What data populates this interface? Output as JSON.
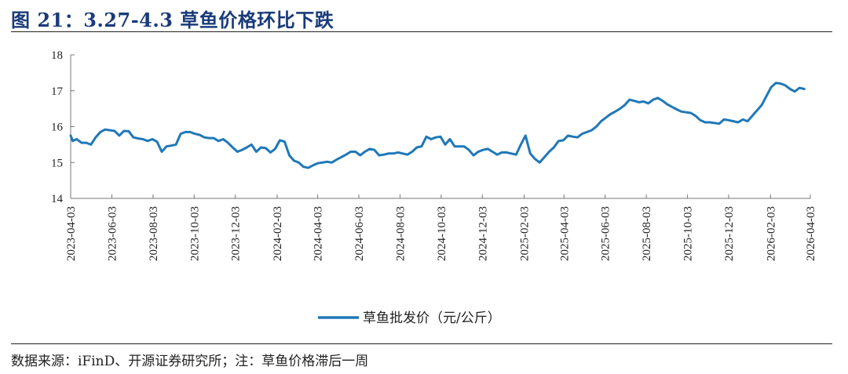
{
  "header": {
    "title": "图 21：3.27-4.3 草鱼价格环比下跌"
  },
  "footer": {
    "source": "数据来源：iFinD、开源证券研究所；注：草鱼价格滞后一周"
  },
  "colors": {
    "line": "#1f78b8",
    "title": "#1a3b7a"
  },
  "chart_data": {
    "type": "line",
    "title": "",
    "xlabel": "",
    "ylabel": "",
    "ylim": [
      14,
      18
    ],
    "yticks": [
      14,
      15,
      16,
      17,
      18
    ],
    "xlim": [
      "2023-04-03",
      "2026-04-03"
    ],
    "xticks": [
      "2023-04-03",
      "2023-06-03",
      "2023-08-03",
      "2023-10-03",
      "2023-12-03",
      "2024-02-03",
      "2024-04-03",
      "2024-06-03",
      "2024-08-03",
      "2024-10-03",
      "2024-12-03",
      "2025-02-03",
      "2025-04-03",
      "2025-06-03",
      "2025-08-03",
      "2025-10-03",
      "2025-12-03",
      "2026-02-03",
      "2026-04-03"
    ],
    "grid": false,
    "legend": "bottom-center",
    "series": [
      {
        "name": "草鱼批发价（元/公斤）",
        "points": [
          [
            "2023-04-03",
            15.75
          ],
          [
            "2023-04-06",
            15.6
          ],
          [
            "2023-04-12",
            15.65
          ],
          [
            "2023-04-19",
            15.55
          ],
          [
            "2023-04-26",
            15.55
          ],
          [
            "2023-05-03",
            15.5
          ],
          [
            "2023-05-10",
            15.7
          ],
          [
            "2023-05-17",
            15.85
          ],
          [
            "2023-05-24",
            15.92
          ],
          [
            "2023-05-31",
            15.9
          ],
          [
            "2023-06-07",
            15.88
          ],
          [
            "2023-06-14",
            15.75
          ],
          [
            "2023-06-21",
            15.88
          ],
          [
            "2023-06-28",
            15.87
          ],
          [
            "2023-07-05",
            15.7
          ],
          [
            "2023-07-12",
            15.67
          ],
          [
            "2023-07-19",
            15.65
          ],
          [
            "2023-07-26",
            15.6
          ],
          [
            "2023-08-02",
            15.65
          ],
          [
            "2023-08-09",
            15.58
          ],
          [
            "2023-08-16",
            15.3
          ],
          [
            "2023-08-23",
            15.45
          ],
          [
            "2023-08-30",
            15.47
          ],
          [
            "2023-09-06",
            15.5
          ],
          [
            "2023-09-13",
            15.8
          ],
          [
            "2023-09-20",
            15.85
          ],
          [
            "2023-09-27",
            15.85
          ],
          [
            "2023-10-04",
            15.8
          ],
          [
            "2023-10-11",
            15.77
          ],
          [
            "2023-10-18",
            15.7
          ],
          [
            "2023-10-25",
            15.68
          ],
          [
            "2023-11-01",
            15.68
          ],
          [
            "2023-11-08",
            15.6
          ],
          [
            "2023-11-15",
            15.65
          ],
          [
            "2023-11-22",
            15.55
          ],
          [
            "2023-11-29",
            15.42
          ],
          [
            "2023-12-06",
            15.3
          ],
          [
            "2023-12-13",
            15.35
          ],
          [
            "2023-12-20",
            15.42
          ],
          [
            "2023-12-27",
            15.5
          ],
          [
            "2024-01-03",
            15.3
          ],
          [
            "2024-01-10",
            15.42
          ],
          [
            "2024-01-17",
            15.4
          ],
          [
            "2024-01-24",
            15.28
          ],
          [
            "2024-01-31",
            15.38
          ],
          [
            "2024-02-07",
            15.62
          ],
          [
            "2024-02-14",
            15.58
          ],
          [
            "2024-02-21",
            15.2
          ],
          [
            "2024-02-28",
            15.05
          ],
          [
            "2024-03-06",
            15.0
          ],
          [
            "2024-03-13",
            14.88
          ],
          [
            "2024-03-20",
            14.85
          ],
          [
            "2024-03-27",
            14.92
          ],
          [
            "2024-04-03",
            14.98
          ],
          [
            "2024-04-10",
            15.0
          ],
          [
            "2024-04-17",
            15.02
          ],
          [
            "2024-04-24",
            15.0
          ],
          [
            "2024-05-01",
            15.08
          ],
          [
            "2024-05-08",
            15.15
          ],
          [
            "2024-05-15",
            15.22
          ],
          [
            "2024-05-22",
            15.3
          ],
          [
            "2024-05-29",
            15.3
          ],
          [
            "2024-06-05",
            15.2
          ],
          [
            "2024-06-12",
            15.3
          ],
          [
            "2024-06-19",
            15.38
          ],
          [
            "2024-06-26",
            15.35
          ],
          [
            "2024-07-03",
            15.2
          ],
          [
            "2024-07-10",
            15.22
          ],
          [
            "2024-07-17",
            15.25
          ],
          [
            "2024-07-24",
            15.25
          ],
          [
            "2024-07-31",
            15.28
          ],
          [
            "2024-08-07",
            15.25
          ],
          [
            "2024-08-14",
            15.22
          ],
          [
            "2024-08-21",
            15.3
          ],
          [
            "2024-08-28",
            15.42
          ],
          [
            "2024-09-04",
            15.45
          ],
          [
            "2024-09-11",
            15.72
          ],
          [
            "2024-09-18",
            15.65
          ],
          [
            "2024-09-25",
            15.7
          ],
          [
            "2024-10-02",
            15.72
          ],
          [
            "2024-10-09",
            15.5
          ],
          [
            "2024-10-16",
            15.65
          ],
          [
            "2024-10-23",
            15.45
          ],
          [
            "2024-10-30",
            15.45
          ],
          [
            "2024-11-06",
            15.45
          ],
          [
            "2024-11-13",
            15.35
          ],
          [
            "2024-11-20",
            15.2
          ],
          [
            "2024-11-27",
            15.3
          ],
          [
            "2024-12-04",
            15.35
          ],
          [
            "2024-12-11",
            15.38
          ],
          [
            "2024-12-18",
            15.3
          ],
          [
            "2024-12-25",
            15.22
          ],
          [
            "2025-01-01",
            15.28
          ],
          [
            "2025-01-08",
            15.28
          ],
          [
            "2025-01-15",
            15.25
          ],
          [
            "2025-01-22",
            15.22
          ],
          [
            "2025-01-29",
            15.5
          ],
          [
            "2025-02-05",
            15.75
          ],
          [
            "2025-02-12",
            15.25
          ],
          [
            "2025-02-19",
            15.1
          ],
          [
            "2025-02-26",
            15.0
          ],
          [
            "2025-03-05",
            15.15
          ],
          [
            "2025-03-12",
            15.3
          ],
          [
            "2025-03-19",
            15.42
          ],
          [
            "2025-03-26",
            15.6
          ],
          [
            "2025-04-02",
            15.62
          ],
          [
            "2025-04-09",
            15.75
          ],
          [
            "2025-04-16",
            15.72
          ],
          [
            "2025-04-23",
            15.7
          ],
          [
            "2025-04-30",
            15.8
          ],
          [
            "2025-05-07",
            15.85
          ],
          [
            "2025-05-14",
            15.9
          ],
          [
            "2025-05-21",
            16.0
          ],
          [
            "2025-05-28",
            16.15
          ],
          [
            "2025-06-04",
            16.25
          ],
          [
            "2025-06-11",
            16.35
          ],
          [
            "2025-06-18",
            16.42
          ],
          [
            "2025-06-25",
            16.5
          ],
          [
            "2025-07-02",
            16.6
          ],
          [
            "2025-07-09",
            16.75
          ],
          [
            "2025-07-16",
            16.72
          ],
          [
            "2025-07-23",
            16.68
          ],
          [
            "2025-07-30",
            16.7
          ],
          [
            "2025-08-06",
            16.65
          ],
          [
            "2025-08-13",
            16.75
          ],
          [
            "2025-08-20",
            16.8
          ],
          [
            "2025-08-27",
            16.72
          ],
          [
            "2025-09-03",
            16.62
          ],
          [
            "2025-09-10",
            16.55
          ],
          [
            "2025-09-17",
            16.48
          ],
          [
            "2025-09-24",
            16.42
          ],
          [
            "2025-10-01",
            16.4
          ],
          [
            "2025-10-08",
            16.38
          ],
          [
            "2025-10-15",
            16.3
          ],
          [
            "2025-10-22",
            16.18
          ],
          [
            "2025-10-29",
            16.12
          ],
          [
            "2025-11-05",
            16.12
          ],
          [
            "2025-11-12",
            16.1
          ],
          [
            "2025-11-19",
            16.08
          ],
          [
            "2025-11-26",
            16.2
          ],
          [
            "2025-12-03",
            16.18
          ],
          [
            "2025-12-10",
            16.15
          ],
          [
            "2025-12-17",
            16.12
          ],
          [
            "2025-12-24",
            16.2
          ],
          [
            "2025-12-31",
            16.15
          ],
          [
            "2026-01-07",
            16.3
          ],
          [
            "2026-01-14",
            16.45
          ],
          [
            "2026-01-21",
            16.6
          ],
          [
            "2026-01-28",
            16.85
          ],
          [
            "2026-02-04",
            17.1
          ],
          [
            "2026-02-11",
            17.22
          ],
          [
            "2026-02-18",
            17.2
          ],
          [
            "2026-02-25",
            17.15
          ],
          [
            "2026-03-04",
            17.05
          ],
          [
            "2026-03-11",
            16.98
          ],
          [
            "2026-03-18",
            17.08
          ],
          [
            "2026-03-25",
            17.05
          ]
        ]
      }
    ]
  }
}
